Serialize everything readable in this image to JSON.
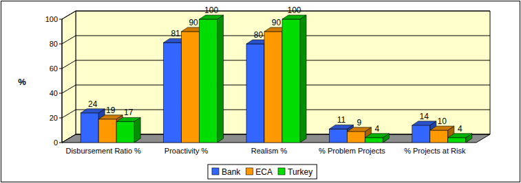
{
  "chart_data": {
    "type": "bar",
    "categories": [
      "Disbursement Ratio %",
      "Proactivity %",
      "Realism %",
      "% Problem Projects",
      "% Projects at Risk"
    ],
    "series": [
      {
        "name": "Bank",
        "color": "#3366ff",
        "values": [
          24,
          81,
          80,
          11,
          14
        ]
      },
      {
        "name": "ECA",
        "color": "#ff9900",
        "values": [
          19,
          90,
          90,
          9,
          10
        ]
      },
      {
        "name": "Turkey",
        "color": "#00dd00",
        "values": [
          17,
          100,
          100,
          4,
          4
        ]
      }
    ],
    "y_label": "%",
    "ylim": [
      0,
      100
    ],
    "yticks": [
      0,
      20,
      40,
      60,
      80,
      100
    ],
    "grid": true,
    "legend": "bottom",
    "data_labels": true
  }
}
